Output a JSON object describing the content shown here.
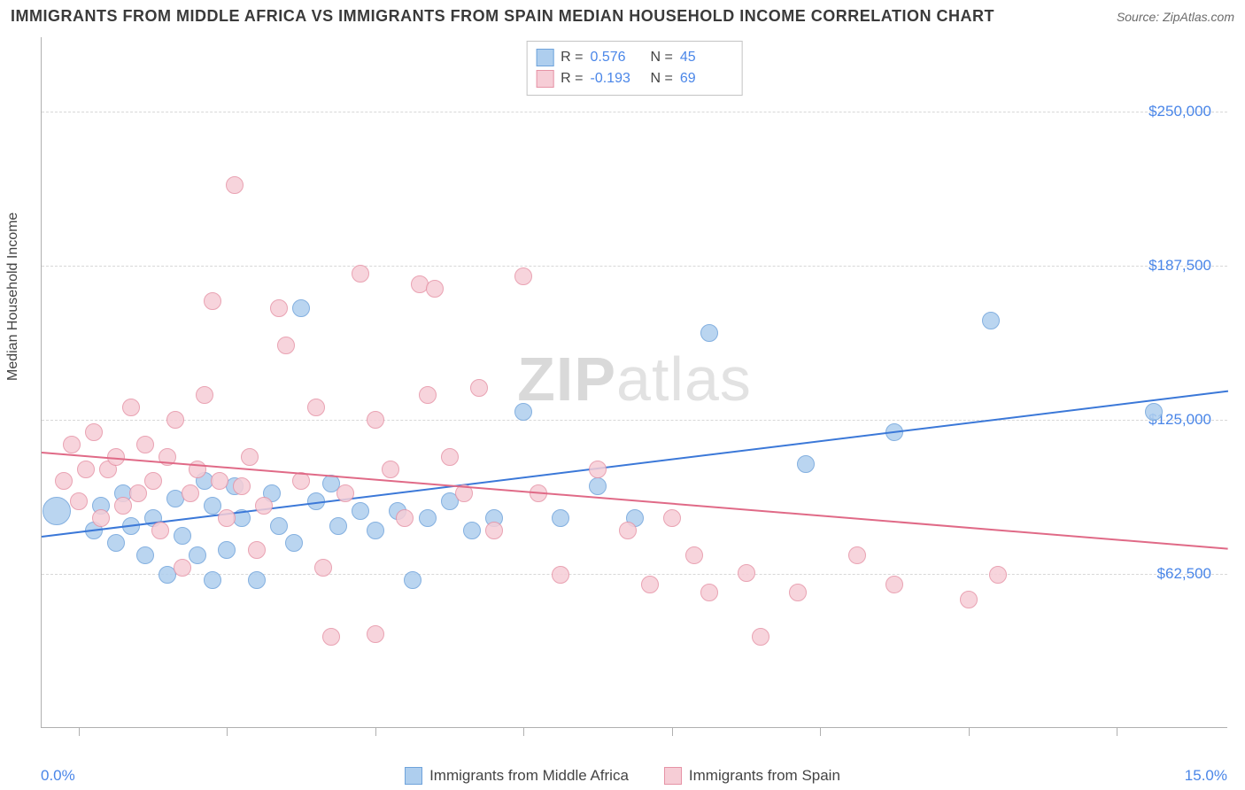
{
  "title": "IMMIGRANTS FROM MIDDLE AFRICA VS IMMIGRANTS FROM SPAIN MEDIAN HOUSEHOLD INCOME CORRELATION CHART",
  "source": "Source: ZipAtlas.com",
  "watermark_a": "ZIP",
  "watermark_b": "atlas",
  "y_axis_label": "Median Household Income",
  "chart": {
    "type": "scatter",
    "xlim": [
      -0.5,
      15.5
    ],
    "ylim": [
      0,
      280000
    ],
    "x_tick_positions": [
      0,
      2,
      4,
      6,
      8,
      10,
      12,
      14
    ],
    "x_start_label": "0.0%",
    "x_end_label": "15.0%",
    "y_ticks": [
      {
        "v": 62500,
        "label": "$62,500"
      },
      {
        "v": 125000,
        "label": "$125,000"
      },
      {
        "v": 187500,
        "label": "$187,500"
      },
      {
        "v": 250000,
        "label": "$250,000"
      }
    ],
    "background_color": "#ffffff",
    "grid_color": "#d8d8d8",
    "axis_color": "#b0b0b0",
    "tick_label_color": "#4a86e8",
    "series": [
      {
        "key": "middle_africa",
        "label": "Immigrants from Middle Africa",
        "fill": "#aeceee",
        "stroke": "#6fa3db",
        "line_color": "#3b78d8",
        "r_value": "0.576",
        "n_value": "45",
        "trend": {
          "x1": -0.5,
          "y1": 78000,
          "x2": 15.5,
          "y2": 137000
        },
        "point_radius": 10,
        "points": [
          [
            -0.3,
            88000,
            16
          ],
          [
            0.2,
            80000
          ],
          [
            0.3,
            90000
          ],
          [
            0.5,
            75000
          ],
          [
            0.6,
            95000
          ],
          [
            0.7,
            82000
          ],
          [
            0.9,
            70000
          ],
          [
            1.0,
            85000
          ],
          [
            1.2,
            62000
          ],
          [
            1.3,
            93000
          ],
          [
            1.4,
            78000
          ],
          [
            1.6,
            70000
          ],
          [
            1.7,
            100000
          ],
          [
            1.8,
            60000
          ],
          [
            1.8,
            90000
          ],
          [
            2.0,
            72000
          ],
          [
            2.1,
            98000
          ],
          [
            2.2,
            85000
          ],
          [
            2.4,
            60000
          ],
          [
            2.6,
            95000
          ],
          [
            2.7,
            82000
          ],
          [
            2.9,
            75000
          ],
          [
            3.0,
            170000
          ],
          [
            3.2,
            92000
          ],
          [
            3.4,
            99000
          ],
          [
            3.5,
            82000
          ],
          [
            3.8,
            88000
          ],
          [
            4.0,
            80000
          ],
          [
            4.3,
            88000
          ],
          [
            4.5,
            60000
          ],
          [
            4.7,
            85000
          ],
          [
            5.0,
            92000
          ],
          [
            5.3,
            80000
          ],
          [
            5.6,
            85000
          ],
          [
            6.0,
            128000
          ],
          [
            6.5,
            85000
          ],
          [
            7.0,
            98000
          ],
          [
            7.5,
            85000
          ],
          [
            8.5,
            160000
          ],
          [
            9.8,
            107000
          ],
          [
            11.0,
            120000
          ],
          [
            12.3,
            165000
          ],
          [
            14.5,
            128000
          ]
        ]
      },
      {
        "key": "spain",
        "label": "Immigrants from Spain",
        "fill": "#f6cdd6",
        "stroke": "#e693a6",
        "line_color": "#e06a87",
        "r_value": "-0.193",
        "n_value": "69",
        "trend": {
          "x1": -0.5,
          "y1": 112000,
          "x2": 15.5,
          "y2": 73000
        },
        "point_radius": 10,
        "points": [
          [
            -0.2,
            100000
          ],
          [
            -0.1,
            115000
          ],
          [
            0.0,
            92000
          ],
          [
            0.1,
            105000
          ],
          [
            0.2,
            120000
          ],
          [
            0.3,
            85000
          ],
          [
            0.4,
            105000
          ],
          [
            0.5,
            110000
          ],
          [
            0.6,
            90000
          ],
          [
            0.7,
            130000
          ],
          [
            0.8,
            95000
          ],
          [
            0.9,
            115000
          ],
          [
            1.0,
            100000
          ],
          [
            1.1,
            80000
          ],
          [
            1.2,
            110000
          ],
          [
            1.3,
            125000
          ],
          [
            1.4,
            65000
          ],
          [
            1.5,
            95000
          ],
          [
            1.6,
            105000
          ],
          [
            1.7,
            135000
          ],
          [
            1.8,
            173000
          ],
          [
            1.9,
            100000
          ],
          [
            2.0,
            85000
          ],
          [
            2.1,
            220000
          ],
          [
            2.2,
            98000
          ],
          [
            2.3,
            110000
          ],
          [
            2.4,
            72000
          ],
          [
            2.5,
            90000
          ],
          [
            2.7,
            170000
          ],
          [
            2.8,
            155000
          ],
          [
            3.0,
            100000
          ],
          [
            3.2,
            130000
          ],
          [
            3.3,
            65000
          ],
          [
            3.4,
            37000
          ],
          [
            3.6,
            95000
          ],
          [
            3.8,
            184000
          ],
          [
            4.0,
            38000
          ],
          [
            4.0,
            125000
          ],
          [
            4.2,
            105000
          ],
          [
            4.4,
            85000
          ],
          [
            4.6,
            180000
          ],
          [
            4.7,
            135000
          ],
          [
            4.8,
            178000
          ],
          [
            5.0,
            110000
          ],
          [
            5.2,
            95000
          ],
          [
            5.4,
            138000
          ],
          [
            5.6,
            80000
          ],
          [
            6.0,
            183000
          ],
          [
            6.2,
            95000
          ],
          [
            6.5,
            62000
          ],
          [
            7.0,
            105000
          ],
          [
            7.4,
            80000
          ],
          [
            7.7,
            58000
          ],
          [
            8.0,
            85000
          ],
          [
            8.3,
            70000
          ],
          [
            8.5,
            55000
          ],
          [
            9.0,
            63000
          ],
          [
            9.2,
            37000
          ],
          [
            9.7,
            55000
          ],
          [
            10.5,
            70000
          ],
          [
            11.0,
            58000
          ],
          [
            12.0,
            52000
          ],
          [
            12.4,
            62000
          ]
        ]
      }
    ]
  },
  "stat_box": {
    "r_label": "R =",
    "n_label": "N ="
  }
}
